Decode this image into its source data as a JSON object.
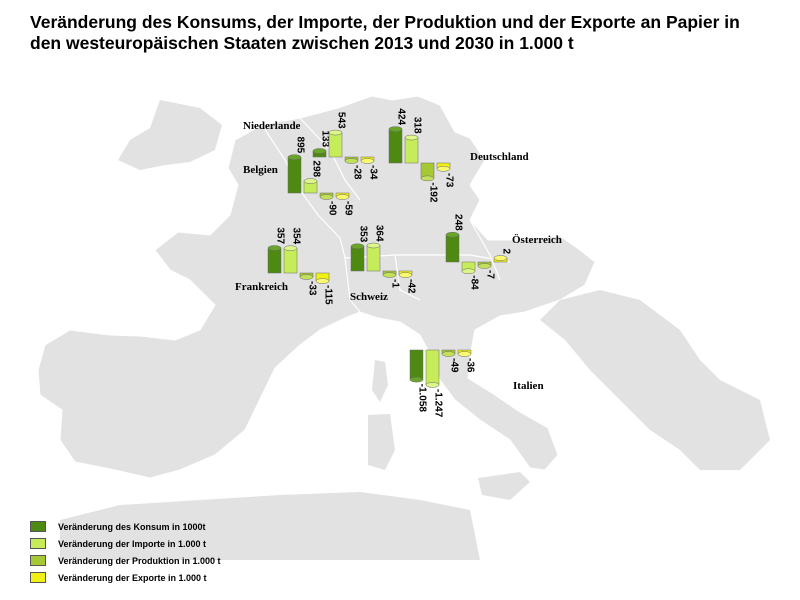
{
  "title": "Veränderung des Konsums, der Importe, der Produktion und der Exporte an Papier in den westeuropäischen Staaten zwischen 2013 und 2030 in 1.000 t",
  "colors": {
    "consumption": "#4e8a12",
    "imports": "#c6ec5a",
    "production": "#a6c832",
    "exports": "#f0f016",
    "land": "#e2e2e2",
    "sea": "#ffffff"
  },
  "chart_data": {
    "type": "bar",
    "title": "Veränderung des Konsums, der Importe, der Produktion und der Exporte an Papier in den westeuropäischen Staaten zwischen 2013 und 2030 in 1.000 t",
    "series_names": [
      "Veränderung des Konsum  in 1000t",
      "Veränderung der Importe in 1.000  t",
      "Veränderung der Produktion  in 1.000 t",
      "Veränderung der Exporte in 1.000 t"
    ],
    "legend_position": "bottom-left",
    "groups": [
      {
        "country": "Niederlande",
        "labels": [
          "133",
          "543",
          "-28",
          "-34"
        ],
        "values": [
          133,
          543,
          -28,
          -34
        ]
      },
      {
        "country": "Belgien",
        "labels": [
          "895",
          "298",
          "-90",
          "-59"
        ],
        "values": [
          895,
          298,
          -90,
          -59
        ]
      },
      {
        "country": "Deutschland",
        "labels": [
          "424",
          "318",
          "-192",
          "-73"
        ],
        "values": [
          424,
          318,
          -192,
          -73
        ]
      },
      {
        "country": "Frankreich",
        "labels": [
          "357",
          "354",
          "-33",
          "-115"
        ],
        "values": [
          357,
          354,
          -33,
          -115
        ]
      },
      {
        "country": "Schweiz",
        "labels": [
          "353",
          "364",
          "-1",
          "-42"
        ],
        "values": [
          353,
          364,
          -1,
          -42
        ]
      },
      {
        "country": "Österreich",
        "labels": [
          "248",
          "-84",
          "-7",
          "2"
        ],
        "values": [
          248,
          -84,
          -7,
          2
        ]
      },
      {
        "country": "Italien",
        "labels": [
          "-1.058",
          "-1.247",
          "-49",
          "-36"
        ],
        "values": [
          -1058,
          -1247,
          -49,
          -36
        ]
      }
    ]
  }
}
